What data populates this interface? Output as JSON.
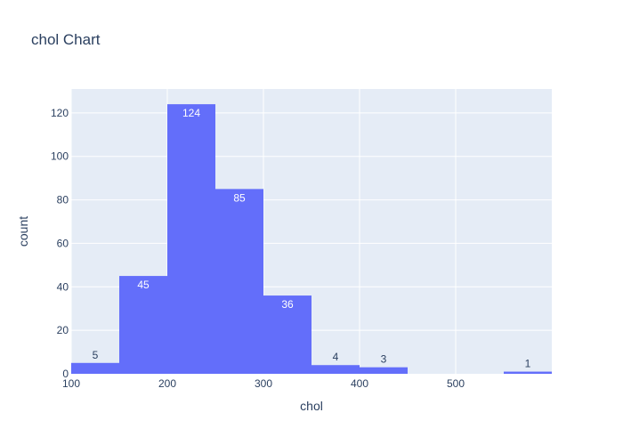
{
  "chart_data": {
    "type": "bar",
    "title": "chol Chart",
    "xlabel": "chol",
    "ylabel": "count",
    "bins": [
      {
        "start": 100,
        "end": 150,
        "count": 5
      },
      {
        "start": 150,
        "end": 200,
        "count": 45
      },
      {
        "start": 200,
        "end": 250,
        "count": 124
      },
      {
        "start": 250,
        "end": 300,
        "count": 85
      },
      {
        "start": 300,
        "end": 350,
        "count": 36
      },
      {
        "start": 350,
        "end": 400,
        "count": 4
      },
      {
        "start": 400,
        "end": 450,
        "count": 3
      },
      {
        "start": 450,
        "end": 500,
        "count": 0
      },
      {
        "start": 500,
        "end": 550,
        "count": 0
      },
      {
        "start": 550,
        "end": 600,
        "count": 1
      }
    ],
    "xlim": [
      100,
      600
    ],
    "ylim": [
      0,
      131
    ],
    "x_ticks": [
      100,
      200,
      300,
      400,
      500
    ],
    "y_ticks": [
      0,
      20,
      40,
      60,
      80,
      100,
      120
    ],
    "grid": true,
    "colors": {
      "bar": "#636efa",
      "plot_bg": "#e5ecf6",
      "grid": "#ffffff",
      "text": "#2a3f5f"
    }
  }
}
